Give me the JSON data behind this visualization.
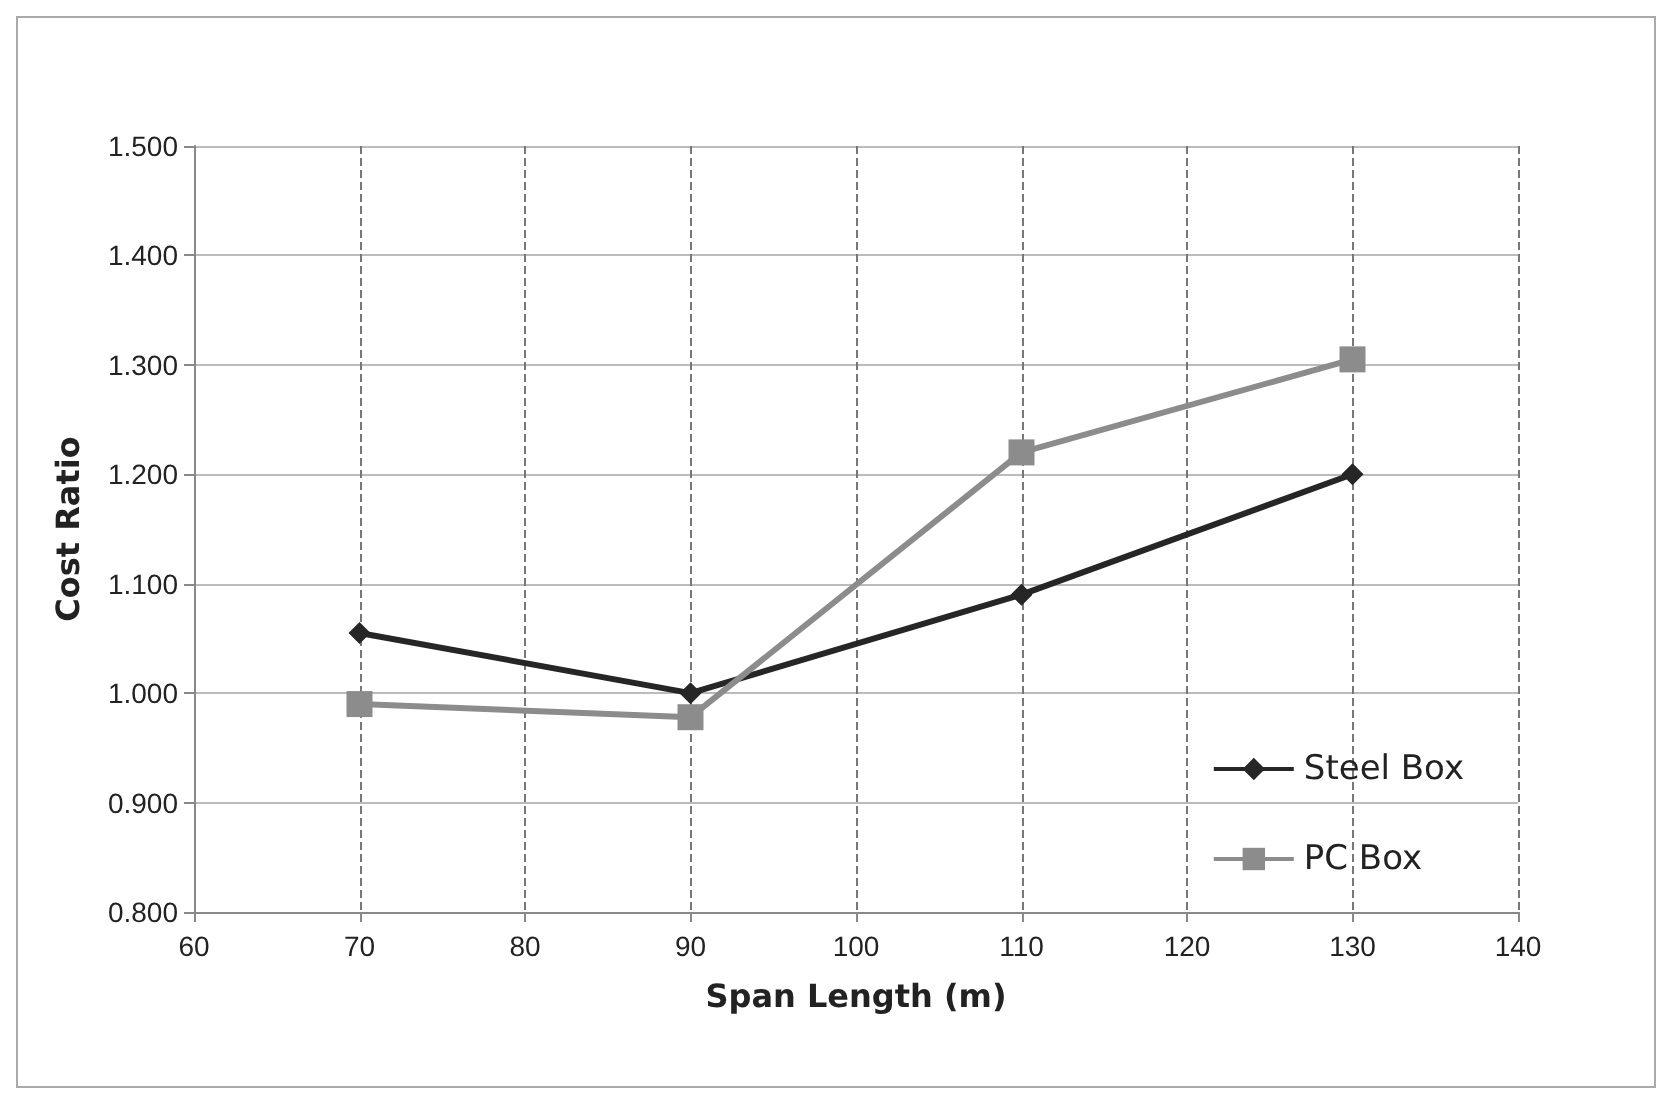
{
  "chart_data": {
    "type": "line",
    "xlabel": "Span Length (m)",
    "ylabel": "Cost Ratio",
    "x": [
      70,
      90,
      110,
      130
    ],
    "series": [
      {
        "name": "Steel Box",
        "color": "#262626",
        "marker": "diamond",
        "values": [
          1.055,
          1.0,
          1.09,
          1.2
        ]
      },
      {
        "name": "PC Box",
        "color": "#8c8c8c",
        "marker": "square",
        "values": [
          0.99,
          0.978,
          1.22,
          1.305
        ]
      }
    ],
    "xlim": [
      60,
      140
    ],
    "xticks": [
      60,
      70,
      80,
      90,
      100,
      110,
      120,
      130,
      140
    ],
    "ylim": [
      0.8,
      1.5
    ],
    "yticks": [
      {
        "value": 0.8,
        "label": "0.800"
      },
      {
        "value": 0.9,
        "label": "0.900"
      },
      {
        "value": 1.0,
        "label": "1.000"
      },
      {
        "value": 1.1,
        "label": "1.100"
      },
      {
        "value": 1.2,
        "label": "1.200"
      },
      {
        "value": 1.3,
        "label": "1.300"
      },
      {
        "value": 1.4,
        "label": "1.400"
      },
      {
        "value": 1.5,
        "label": "1.500"
      }
    ],
    "grid": true,
    "legend": "bottom right",
    "line_style": "solid"
  }
}
